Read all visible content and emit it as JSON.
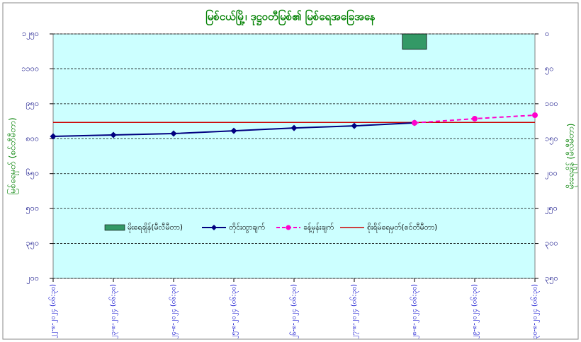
{
  "chart_data": {
    "type": "combo",
    "title": "မြစ်ငယ်မြို့၊ ဒုဋ္ဌဝတီမြစ်၏ မြစ်ရေအခြေအနေ",
    "ylabel": "မြစ်ရေမှတ် (စင်တီမီတာ)",
    "y2label": "မိုးရေချိန် (မီလီမီတာ)",
    "categories": [
      "၂၂-၈-၂၀၂၄ (၀၆:၃၀)",
      "၂၃-၈-၂၀၂၄ (၀၆:၃၀)",
      "၂၄-၈-၂၀၂၄ (၀၆:၃၀)",
      "၂၅-၈-၂၀၂၄ (၀၆:၃၀)",
      "၂၆-၈-၂၀၂၄ (၀၆:၃၀)",
      "၂၇-၈-၂၀၂၄ (၀၆:၃၀)",
      "၂၈-၈-၂၀၂၄ (၀၆:၃၀)",
      "၂၉-၈-၂၀၂၄ (၀၆:၃၀)",
      "၃၀-၈-၂၀၂၄ (၀၆:၃၀)"
    ],
    "series": [
      {
        "name": "မိုးရေချိန်(မီလီမီတာ)",
        "type": "bar",
        "axis": "y2",
        "color": "#339966",
        "values": [
          null,
          null,
          null,
          null,
          null,
          null,
          22,
          null,
          null
        ]
      },
      {
        "name": "တိုင်းထွာချက်",
        "type": "line",
        "color": "#000080",
        "marker": "diamond",
        "values": [
          810,
          816,
          822,
          834,
          846,
          855,
          868,
          null,
          null
        ]
      },
      {
        "name": "ခန့်မှန်းချက်",
        "type": "line",
        "color": "#ff00cc",
        "marker": "circle",
        "dashed": true,
        "values": [
          null,
          null,
          null,
          null,
          null,
          null,
          868,
          886,
          901
        ]
      }
    ],
    "reference_line": {
      "name": "စိုးရိမ်ရေမှတ်(စင်တီမီတာ)",
      "value": 870,
      "color": "#cc0000"
    },
    "ylim": [
      200,
      1250
    ],
    "yticks": [
      {
        "value": 1250,
        "label": "၁၂၅၀"
      },
      {
        "value": 1100,
        "label": "၁၁၀၀"
      },
      {
        "value": 950,
        "label": "၉၅၀"
      },
      {
        "value": 800,
        "label": "၈၀၀"
      },
      {
        "value": 650,
        "label": "၆၅၀"
      },
      {
        "value": 500,
        "label": "၅၀၀"
      },
      {
        "value": 350,
        "label": "၃၅၀"
      },
      {
        "value": 200,
        "label": "၂၀၀"
      }
    ],
    "y2lim": [
      0,
      350
    ],
    "y2_inverted": true,
    "y2ticks": [
      {
        "value": 0,
        "label": "၀"
      },
      {
        "value": 50,
        "label": "၅၀"
      },
      {
        "value": 100,
        "label": "၁၀၀"
      },
      {
        "value": 150,
        "label": "၁၅၀"
      },
      {
        "value": 200,
        "label": "၂၀၀"
      },
      {
        "value": 250,
        "label": "၂၅၀"
      },
      {
        "value": 300,
        "label": "၃၀၀"
      },
      {
        "value": 350,
        "label": "၃၅၀"
      }
    ],
    "grid": true
  }
}
